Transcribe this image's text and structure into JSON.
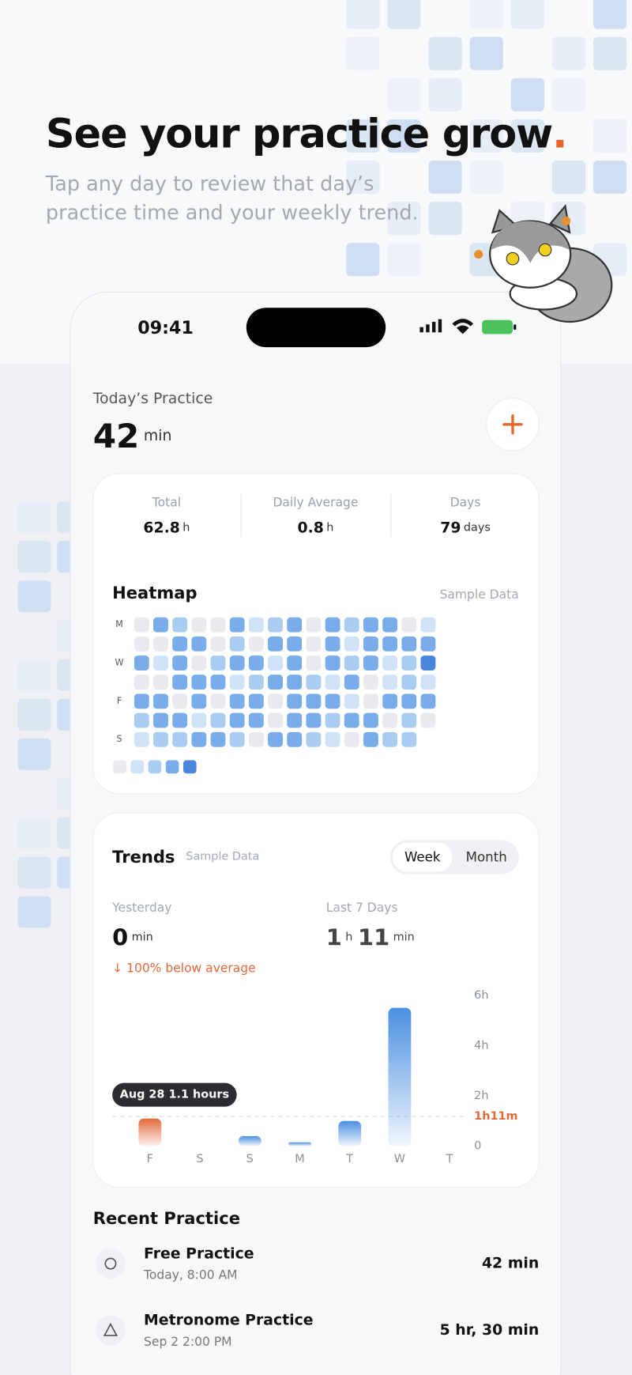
{
  "header": {
    "title": "See your practice grow",
    "title_mark": ".",
    "subtitle_lines": [
      "Tap any day to review that day’s",
      "practice time and your weekly trend."
    ]
  },
  "status_bar": {
    "time": "09:41"
  },
  "today": {
    "label": "Today’s Practice",
    "value": 42,
    "unit": "min"
  },
  "stats": [
    {
      "label": "Total",
      "value": 62.8,
      "unit": "h"
    },
    {
      "label": "Daily Average",
      "value": 0.8,
      "unit": "h"
    },
    {
      "label": "Days",
      "value": 79,
      "unit": "days"
    }
  ],
  "heatmap": {
    "title": "Heatmap",
    "note": "Sample Data",
    "row_labels": [
      "M",
      null,
      "W",
      null,
      "F",
      null,
      "S"
    ],
    "palette": [
      "#e8eaee",
      "#cfe2f6",
      "#a9cdf0",
      "#78adea",
      "#4a86db"
    ],
    "levels": [
      [
        0,
        3,
        2,
        0,
        0,
        3,
        1,
        2,
        3,
        0,
        3,
        2,
        3,
        3,
        0,
        1
      ],
      [
        0,
        0,
        3,
        3,
        0,
        2,
        0,
        3,
        3,
        0,
        3,
        1,
        3,
        3,
        3,
        3
      ],
      [
        3,
        1,
        3,
        0,
        2,
        3,
        3,
        1,
        3,
        0,
        3,
        2,
        3,
        1,
        2,
        4
      ],
      [
        0,
        0,
        3,
        3,
        3,
        1,
        2,
        3,
        3,
        2,
        1,
        3,
        0,
        1,
        2,
        1
      ],
      [
        3,
        3,
        0,
        3,
        0,
        3,
        3,
        0,
        3,
        3,
        3,
        1,
        0,
        3,
        3,
        3
      ],
      [
        2,
        3,
        3,
        1,
        2,
        3,
        3,
        0,
        3,
        3,
        2,
        3,
        3,
        0,
        2,
        0
      ],
      [
        1,
        2,
        2,
        3,
        3,
        2,
        0,
        3,
        3,
        2,
        1,
        0,
        3,
        2,
        2,
        null
      ]
    ]
  },
  "trends": {
    "title": "Trends",
    "note": "Sample Data",
    "tabs": [
      "Week",
      "Month"
    ],
    "yesterday": {
      "label": "Yesterday",
      "value": 0,
      "unit": "min",
      "change": "↓ 100% below average"
    },
    "last7": {
      "label": "Last 7 Days",
      "hours": 1,
      "hours_unit": "h",
      "minutes": 11,
      "minutes_unit": "min"
    },
    "chart_data": {
      "type": "bar",
      "categories": [
        "F",
        "S",
        "S",
        "M",
        "T",
        "W",
        "T"
      ],
      "values": [
        1.1,
        0,
        0.4,
        0.15,
        1.0,
        5.5,
        0
      ],
      "color": "#4a8fe0",
      "highlight_color": "#e06a3c",
      "highlight_index": 0,
      "tooltip": "Aug 28 1.1 hours",
      "ylim": [
        0,
        6
      ],
      "yticks": [
        {
          "value": 0,
          "label": "0"
        },
        {
          "value": 2,
          "label": "2h"
        },
        {
          "value": 4,
          "label": "4h"
        },
        {
          "value": 6,
          "label": "6h"
        }
      ],
      "average": {
        "value": 1.1833,
        "label": "1h11m"
      }
    }
  },
  "recent": {
    "title": "Recent Practice",
    "items": [
      {
        "title": "Free Practice",
        "subtitle": "Today, 8:00 AM",
        "duration": "42 min"
      },
      {
        "title": "Metronome Practice",
        "subtitle": "Sep 2 2:00 PM",
        "duration": "5 hr, 30 min"
      }
    ]
  }
}
